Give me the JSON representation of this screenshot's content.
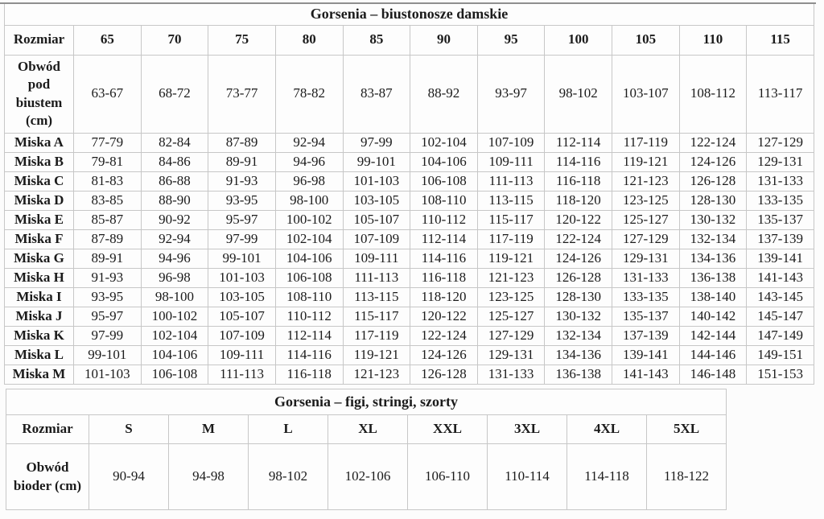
{
  "colors": {
    "background": "#fcfcfc",
    "cell_background": "#fdfdfd",
    "border": "#c7c7c7",
    "top_rule": "#8f8f8f",
    "text": "#1b1b1b"
  },
  "tables": [
    {
      "id": "bras",
      "title": "Gorsenia – biustonosze damskie",
      "header": [
        "Rozmiar",
        "65",
        "70",
        "75",
        "80",
        "85",
        "90",
        "95",
        "100",
        "105",
        "110",
        "115"
      ],
      "rows": [
        {
          "label": "Obwód pod biustem (cm)",
          "cells": [
            "63-67",
            "68-72",
            "73-77",
            "78-82",
            "83-87",
            "88-92",
            "93-97",
            "98-102",
            "103-107",
            "108-112",
            "113-117"
          ]
        },
        {
          "label": "Miska A",
          "cells": [
            "77-79",
            "82-84",
            "87-89",
            "92-94",
            "97-99",
            "102-104",
            "107-109",
            "112-114",
            "117-119",
            "122-124",
            "127-129"
          ]
        },
        {
          "label": "Miska B",
          "cells": [
            "79-81",
            "84-86",
            "89-91",
            "94-96",
            "99-101",
            "104-106",
            "109-111",
            "114-116",
            "119-121",
            "124-126",
            "129-131"
          ]
        },
        {
          "label": "Miska C",
          "cells": [
            "81-83",
            "86-88",
            "91-93",
            "96-98",
            "101-103",
            "106-108",
            "111-113",
            "116-118",
            "121-123",
            "126-128",
            "131-133"
          ]
        },
        {
          "label": "Miska D",
          "cells": [
            "83-85",
            "88-90",
            "93-95",
            "98-100",
            "103-105",
            "108-110",
            "113-115",
            "118-120",
            "123-125",
            "128-130",
            "133-135"
          ]
        },
        {
          "label": "Miska E",
          "cells": [
            "85-87",
            "90-92",
            "95-97",
            "100-102",
            "105-107",
            "110-112",
            "115-117",
            "120-122",
            "125-127",
            "130-132",
            "135-137"
          ]
        },
        {
          "label": "Miska F",
          "cells": [
            "87-89",
            "92-94",
            "97-99",
            "102-104",
            "107-109",
            "112-114",
            "117-119",
            "122-124",
            "127-129",
            "132-134",
            "137-139"
          ]
        },
        {
          "label": "Miska G",
          "cells": [
            "89-91",
            "94-96",
            "99-101",
            "104-106",
            "109-111",
            "114-116",
            "119-121",
            "124-126",
            "129-131",
            "134-136",
            "139-141"
          ]
        },
        {
          "label": "Miska H",
          "cells": [
            "91-93",
            "96-98",
            "101-103",
            "106-108",
            "111-113",
            "116-118",
            "121-123",
            "126-128",
            "131-133",
            "136-138",
            "141-143"
          ]
        },
        {
          "label": "Miska I",
          "cells": [
            "93-95",
            "98-100",
            "103-105",
            "108-110",
            "113-115",
            "118-120",
            "123-125",
            "128-130",
            "133-135",
            "138-140",
            "143-145"
          ]
        },
        {
          "label": "Miska J",
          "cells": [
            "95-97",
            "100-102",
            "105-107",
            "110-112",
            "115-117",
            "120-122",
            "125-127",
            "130-132",
            "135-137",
            "140-142",
            "145-147"
          ]
        },
        {
          "label": "Miska K",
          "cells": [
            "97-99",
            "102-104",
            "107-109",
            "112-114",
            "117-119",
            "122-124",
            "127-129",
            "132-134",
            "137-139",
            "142-144",
            "147-149"
          ]
        },
        {
          "label": "Miska L",
          "cells": [
            "99-101",
            "104-106",
            "109-111",
            "114-116",
            "119-121",
            "124-126",
            "129-131",
            "134-136",
            "139-141",
            "144-146",
            "149-151"
          ]
        },
        {
          "label": "Miska M",
          "cells": [
            "101-103",
            "106-108",
            "111-113",
            "116-118",
            "121-123",
            "126-128",
            "131-133",
            "136-138",
            "141-143",
            "146-148",
            "151-153"
          ]
        }
      ]
    },
    {
      "id": "panties",
      "title": "Gorsenia – figi, stringi, szorty",
      "header": [
        "Rozmiar",
        "S",
        "M",
        "L",
        "XL",
        "XXL",
        "3XL",
        "4XL",
        "5XL"
      ],
      "rows": [
        {
          "label": "Obwód bioder (cm)",
          "cells": [
            "90-94",
            "94-98",
            "98-102",
            "102-106",
            "106-110",
            "110-114",
            "114-118",
            "118-122"
          ]
        }
      ]
    }
  ]
}
